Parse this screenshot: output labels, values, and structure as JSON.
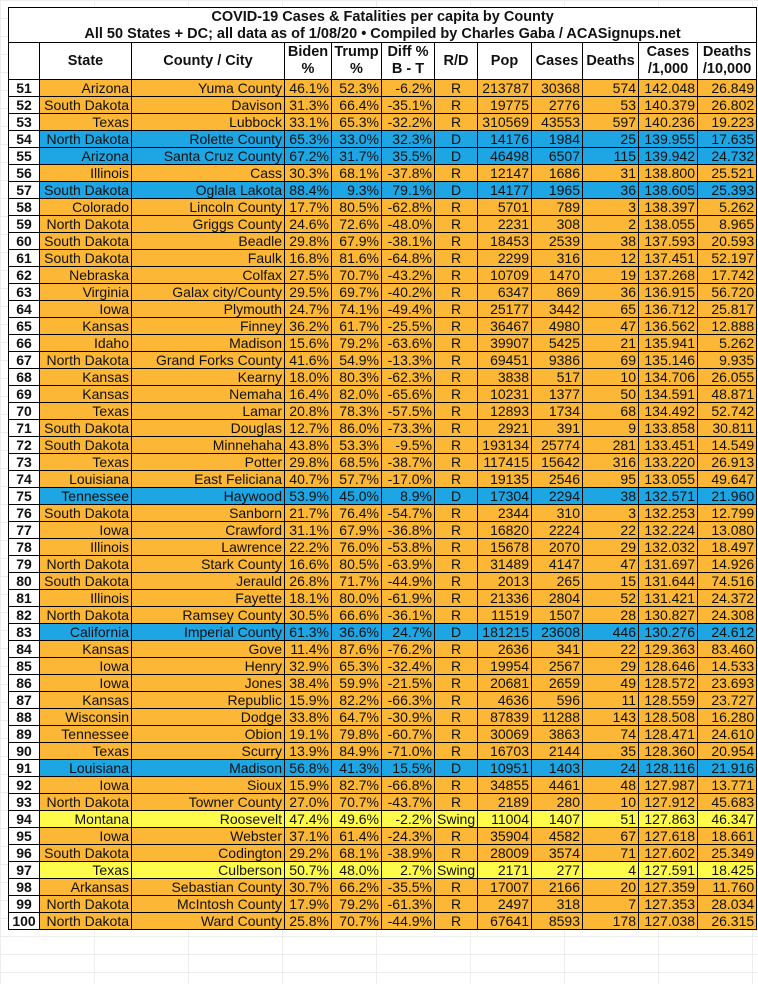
{
  "title": {
    "line1": "COVID-19 Cases & Fatalities per capita by County",
    "line2": "All 50 States + DC; all data as of 1/08/20  • Compiled by Charles Gaba / ACASignups.net"
  },
  "headers": {
    "num": "",
    "state": "State",
    "county": "County / City",
    "biden": [
      "Biden",
      "%"
    ],
    "trump": [
      "Trump",
      "%"
    ],
    "diff": [
      "Diff %",
      "B - T"
    ],
    "rd": "R/D",
    "pop": "Pop",
    "cases": "Cases",
    "deaths": "Deaths",
    "cases_per_1000": [
      "Cases",
      "/1,000"
    ],
    "deaths_per_10000": [
      "Deaths",
      "/10,000"
    ]
  },
  "colors": {
    "R": "#FBB735",
    "D": "#1EA5E3",
    "Swing": "#FFFB4A"
  },
  "rows": [
    [
      "51",
      "Arizona",
      "Yuma County",
      "46.1%",
      "52.3%",
      "-6.2%",
      "R",
      "213787",
      "30368",
      "574",
      "142.048",
      "26.849"
    ],
    [
      "52",
      "South Dakota",
      "Davison",
      "31.3%",
      "66.4%",
      "-35.1%",
      "R",
      "19775",
      "2776",
      "53",
      "140.379",
      "26.802"
    ],
    [
      "53",
      "Texas",
      "Lubbock",
      "33.1%",
      "65.3%",
      "-32.2%",
      "R",
      "310569",
      "43553",
      "597",
      "140.236",
      "19.223"
    ],
    [
      "54",
      "North Dakota",
      "Rolette County",
      "65.3%",
      "33.0%",
      "32.3%",
      "D",
      "14176",
      "1984",
      "25",
      "139.955",
      "17.635"
    ],
    [
      "55",
      "Arizona",
      "Santa Cruz County",
      "67.2%",
      "31.7%",
      "35.5%",
      "D",
      "46498",
      "6507",
      "115",
      "139.942",
      "24.732"
    ],
    [
      "56",
      "Illinois",
      "Cass",
      "30.3%",
      "68.1%",
      "-37.8%",
      "R",
      "12147",
      "1686",
      "31",
      "138.800",
      "25.521"
    ],
    [
      "57",
      "South Dakota",
      "Oglala Lakota",
      "88.4%",
      "9.3%",
      "79.1%",
      "D",
      "14177",
      "1965",
      "36",
      "138.605",
      "25.393"
    ],
    [
      "58",
      "Colorado",
      "Lincoln County",
      "17.7%",
      "80.5%",
      "-62.8%",
      "R",
      "5701",
      "789",
      "3",
      "138.397",
      "5.262"
    ],
    [
      "59",
      "North Dakota",
      "Griggs County",
      "24.6%",
      "72.6%",
      "-48.0%",
      "R",
      "2231",
      "308",
      "2",
      "138.055",
      "8.965"
    ],
    [
      "60",
      "South Dakota",
      "Beadle",
      "29.8%",
      "67.9%",
      "-38.1%",
      "R",
      "18453",
      "2539",
      "38",
      "137.593",
      "20.593"
    ],
    [
      "61",
      "South Dakota",
      "Faulk",
      "16.8%",
      "81.6%",
      "-64.8%",
      "R",
      "2299",
      "316",
      "12",
      "137.451",
      "52.197"
    ],
    [
      "62",
      "Nebraska",
      "Colfax",
      "27.5%",
      "70.7%",
      "-43.2%",
      "R",
      "10709",
      "1470",
      "19",
      "137.268",
      "17.742"
    ],
    [
      "63",
      "Virginia",
      "Galax city/County",
      "29.5%",
      "69.7%",
      "-40.2%",
      "R",
      "6347",
      "869",
      "36",
      "136.915",
      "56.720"
    ],
    [
      "64",
      "Iowa",
      "Plymouth",
      "24.7%",
      "74.1%",
      "-49.4%",
      "R",
      "25177",
      "3442",
      "65",
      "136.712",
      "25.817"
    ],
    [
      "65",
      "Kansas",
      "Finney",
      "36.2%",
      "61.7%",
      "-25.5%",
      "R",
      "36467",
      "4980",
      "47",
      "136.562",
      "12.888"
    ],
    [
      "66",
      "Idaho",
      "Madison",
      "15.6%",
      "79.2%",
      "-63.6%",
      "R",
      "39907",
      "5425",
      "21",
      "135.941",
      "5.262"
    ],
    [
      "67",
      "North Dakota",
      "Grand Forks County",
      "41.6%",
      "54.9%",
      "-13.3%",
      "R",
      "69451",
      "9386",
      "69",
      "135.146",
      "9.935"
    ],
    [
      "68",
      "Kansas",
      "Kearny",
      "18.0%",
      "80.3%",
      "-62.3%",
      "R",
      "3838",
      "517",
      "10",
      "134.706",
      "26.055"
    ],
    [
      "69",
      "Kansas",
      "Nemaha",
      "16.4%",
      "82.0%",
      "-65.6%",
      "R",
      "10231",
      "1377",
      "50",
      "134.591",
      "48.871"
    ],
    [
      "70",
      "Texas",
      "Lamar",
      "20.8%",
      "78.3%",
      "-57.5%",
      "R",
      "12893",
      "1734",
      "68",
      "134.492",
      "52.742"
    ],
    [
      "71",
      "South Dakota",
      "Douglas",
      "12.7%",
      "86.0%",
      "-73.3%",
      "R",
      "2921",
      "391",
      "9",
      "133.858",
      "30.811"
    ],
    [
      "72",
      "South Dakota",
      "Minnehaha",
      "43.8%",
      "53.3%",
      "-9.5%",
      "R",
      "193134",
      "25774",
      "281",
      "133.451",
      "14.549"
    ],
    [
      "73",
      "Texas",
      "Potter",
      "29.8%",
      "68.5%",
      "-38.7%",
      "R",
      "117415",
      "15642",
      "316",
      "133.220",
      "26.913"
    ],
    [
      "74",
      "Louisiana",
      "East Feliciana",
      "40.7%",
      "57.7%",
      "-17.0%",
      "R",
      "19135",
      "2546",
      "95",
      "133.055",
      "49.647"
    ],
    [
      "75",
      "Tennessee",
      "Haywood",
      "53.9%",
      "45.0%",
      "8.9%",
      "D",
      "17304",
      "2294",
      "38",
      "132.571",
      "21.960"
    ],
    [
      "76",
      "South Dakota",
      "Sanborn",
      "21.7%",
      "76.4%",
      "-54.7%",
      "R",
      "2344",
      "310",
      "3",
      "132.253",
      "12.799"
    ],
    [
      "77",
      "Iowa",
      "Crawford",
      "31.1%",
      "67.9%",
      "-36.8%",
      "R",
      "16820",
      "2224",
      "22",
      "132.224",
      "13.080"
    ],
    [
      "78",
      "Illinois",
      "Lawrence",
      "22.2%",
      "76.0%",
      "-53.8%",
      "R",
      "15678",
      "2070",
      "29",
      "132.032",
      "18.497"
    ],
    [
      "79",
      "North Dakota",
      "Stark County",
      "16.6%",
      "80.5%",
      "-63.9%",
      "R",
      "31489",
      "4147",
      "47",
      "131.697",
      "14.926"
    ],
    [
      "80",
      "South Dakota",
      "Jerauld",
      "26.8%",
      "71.7%",
      "-44.9%",
      "R",
      "2013",
      "265",
      "15",
      "131.644",
      "74.516"
    ],
    [
      "81",
      "Illinois",
      "Fayette",
      "18.1%",
      "80.0%",
      "-61.9%",
      "R",
      "21336",
      "2804",
      "52",
      "131.421",
      "24.372"
    ],
    [
      "82",
      "North Dakota",
      "Ramsey County",
      "30.5%",
      "66.6%",
      "-36.1%",
      "R",
      "11519",
      "1507",
      "28",
      "130.827",
      "24.308"
    ],
    [
      "83",
      "California",
      "Imperial County",
      "61.3%",
      "36.6%",
      "24.7%",
      "D",
      "181215",
      "23608",
      "446",
      "130.276",
      "24.612"
    ],
    [
      "84",
      "Kansas",
      "Gove",
      "11.4%",
      "87.6%",
      "-76.2%",
      "R",
      "2636",
      "341",
      "22",
      "129.363",
      "83.460"
    ],
    [
      "85",
      "Iowa",
      "Henry",
      "32.9%",
      "65.3%",
      "-32.4%",
      "R",
      "19954",
      "2567",
      "29",
      "128.646",
      "14.533"
    ],
    [
      "86",
      "Iowa",
      "Jones",
      "38.4%",
      "59.9%",
      "-21.5%",
      "R",
      "20681",
      "2659",
      "49",
      "128.572",
      "23.693"
    ],
    [
      "87",
      "Kansas",
      "Republic",
      "15.9%",
      "82.2%",
      "-66.3%",
      "R",
      "4636",
      "596",
      "11",
      "128.559",
      "23.727"
    ],
    [
      "88",
      "Wisconsin",
      "Dodge",
      "33.8%",
      "64.7%",
      "-30.9%",
      "R",
      "87839",
      "11288",
      "143",
      "128.508",
      "16.280"
    ],
    [
      "89",
      "Tennessee",
      "Obion",
      "19.1%",
      "79.8%",
      "-60.7%",
      "R",
      "30069",
      "3863",
      "74",
      "128.471",
      "24.610"
    ],
    [
      "90",
      "Texas",
      "Scurry",
      "13.9%",
      "84.9%",
      "-71.0%",
      "R",
      "16703",
      "2144",
      "35",
      "128.360",
      "20.954"
    ],
    [
      "91",
      "Louisiana",
      "Madison",
      "56.8%",
      "41.3%",
      "15.5%",
      "D",
      "10951",
      "1403",
      "24",
      "128.116",
      "21.916"
    ],
    [
      "92",
      "Iowa",
      "Sioux",
      "15.9%",
      "82.7%",
      "-66.8%",
      "R",
      "34855",
      "4461",
      "48",
      "127.987",
      "13.771"
    ],
    [
      "93",
      "North Dakota",
      "Towner County",
      "27.0%",
      "70.7%",
      "-43.7%",
      "R",
      "2189",
      "280",
      "10",
      "127.912",
      "45.683"
    ],
    [
      "94",
      "Montana",
      "Roosevelt",
      "47.4%",
      "49.6%",
      "-2.2%",
      "Swing",
      "11004",
      "1407",
      "51",
      "127.863",
      "46.347"
    ],
    [
      "95",
      "Iowa",
      "Webster",
      "37.1%",
      "61.4%",
      "-24.3%",
      "R",
      "35904",
      "4582",
      "67",
      "127.618",
      "18.661"
    ],
    [
      "96",
      "South Dakota",
      "Codington",
      "29.2%",
      "68.1%",
      "-38.9%",
      "R",
      "28009",
      "3574",
      "71",
      "127.602",
      "25.349"
    ],
    [
      "97",
      "Texas",
      "Culberson",
      "50.7%",
      "48.0%",
      "2.7%",
      "Swing",
      "2171",
      "277",
      "4",
      "127.591",
      "18.425"
    ],
    [
      "98",
      "Arkansas",
      "Sebastian County",
      "30.7%",
      "66.2%",
      "-35.5%",
      "R",
      "17007",
      "2166",
      "20",
      "127.359",
      "11.760"
    ],
    [
      "99",
      "North Dakota",
      "McIntosh County",
      "17.9%",
      "79.2%",
      "-61.3%",
      "R",
      "2497",
      "318",
      "7",
      "127.353",
      "28.034"
    ],
    [
      "100",
      "North Dakota",
      "Ward County",
      "25.8%",
      "70.7%",
      "-44.9%",
      "R",
      "67641",
      "8593",
      "178",
      "127.038",
      "26.315"
    ]
  ]
}
